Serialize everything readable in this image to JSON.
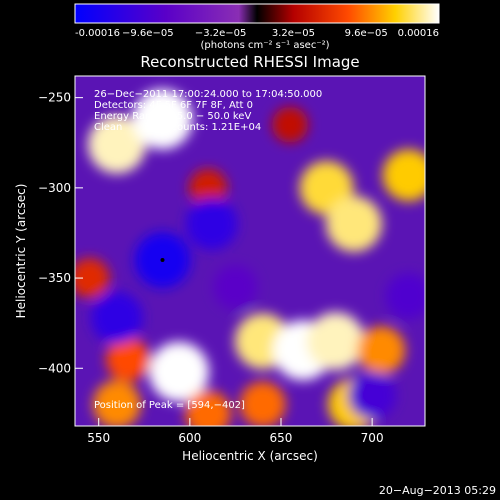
{
  "colorbar": {
    "tick_labels": [
      "-0.00016",
      "−9.6e−05",
      "−3.2e−05",
      "3.2e−05",
      "9.6e−05",
      "0.00016"
    ],
    "tick_values": [
      -0.00016,
      -9.6e-05,
      -3.2e-05,
      3.2e-05,
      9.6e-05,
      0.00016
    ],
    "range": [
      -0.00016,
      0.00016
    ],
    "unit_label": "(photons cm⁻² s⁻¹ asec⁻²)",
    "colors": [
      "#0000ff",
      "#5a00c8",
      "#8a2eb4",
      "#000000",
      "#b40000",
      "#ff4a00",
      "#ffd000",
      "#ffffff"
    ]
  },
  "chart_data": {
    "type": "heatmap",
    "title": "Reconstructed RHESSI Image",
    "xlabel": "Heliocentric X (arcsec)",
    "ylabel": "Heliocentric Y (arcsec)",
    "xlim": [
      537,
      729
    ],
    "ylim": [
      -432,
      -238
    ],
    "x_ticks": [
      550,
      600,
      650,
      700
    ],
    "x_tick_labels": [
      "550",
      "600",
      "650",
      "700"
    ],
    "y_ticks": [
      -250,
      -300,
      -350,
      -400
    ],
    "y_tick_labels": [
      "−250",
      "−300",
      "−350",
      "−400"
    ],
    "blobs": [
      {
        "x": 560,
        "y": -276,
        "value": 0.00015
      },
      {
        "x": 585,
        "y": -262,
        "value": 0.00016
      },
      {
        "x": 610,
        "y": -300,
        "value": 5e-05
      },
      {
        "x": 675,
        "y": -300,
        "value": 0.00013
      },
      {
        "x": 690,
        "y": -320,
        "value": 0.00014
      },
      {
        "x": 720,
        "y": -293,
        "value": 0.00012
      },
      {
        "x": 655,
        "y": -265,
        "value": 4e-05
      },
      {
        "x": 545,
        "y": -350,
        "value": 6e-05
      },
      {
        "x": 640,
        "y": -385,
        "value": 0.00014
      },
      {
        "x": 662,
        "y": -390,
        "value": 0.00016
      },
      {
        "x": 680,
        "y": -385,
        "value": 0.00015
      },
      {
        "x": 705,
        "y": -390,
        "value": 0.0001
      },
      {
        "x": 594,
        "y": -402,
        "value": 0.00016
      },
      {
        "x": 566,
        "y": -395,
        "value": 8e-05
      },
      {
        "x": 560,
        "y": -420,
        "value": 0.0001
      },
      {
        "x": 610,
        "y": -425,
        "value": 9e-05
      },
      {
        "x": 640,
        "y": -420,
        "value": 9e-05
      },
      {
        "x": 690,
        "y": -420,
        "value": 0.00012
      },
      {
        "x": 585,
        "y": -340,
        "value": -0.00014
      },
      {
        "x": 612,
        "y": -320,
        "value": -0.00012
      },
      {
        "x": 560,
        "y": -372,
        "value": -0.00012
      },
      {
        "x": 720,
        "y": -360,
        "value": -9e-05
      },
      {
        "x": 625,
        "y": -355,
        "value": -8e-05
      },
      {
        "x": 700,
        "y": -415,
        "value": -0.0001
      }
    ]
  },
  "overlay": {
    "time_range": "26−Dec−2011 17:00:24.000 to 17:04:50.000",
    "detectors": "Detectors: 4F 5F 6F 7F 8F, Att 0",
    "energy": "Energy Range: 25.0 − 50.0 keV",
    "algorithm": "Clean",
    "total_counts": "Total counts: 1.21E+04",
    "peak": "Position of Peak = [594,−402]"
  },
  "timestamp": "20−Aug−2013 05:29"
}
